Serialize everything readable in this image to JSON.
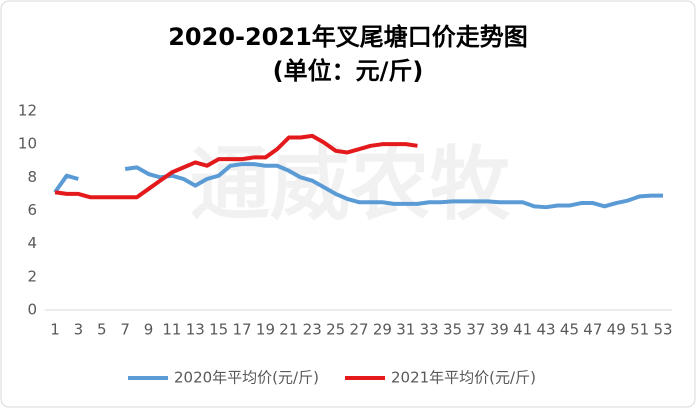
{
  "chart_data": {
    "type": "line",
    "title": "2020-2021年叉尾塘口价走势图",
    "subtitle": "(单位：元/斤)",
    "watermark": "通威农牧",
    "x": [
      1,
      2,
      3,
      4,
      5,
      6,
      7,
      8,
      9,
      10,
      11,
      12,
      13,
      14,
      15,
      16,
      17,
      18,
      19,
      20,
      21,
      22,
      23,
      24,
      25,
      26,
      27,
      28,
      29,
      30,
      31,
      32,
      33,
      34,
      35,
      36,
      37,
      38,
      39,
      40,
      41,
      42,
      43,
      44,
      45,
      46,
      47,
      48,
      49,
      50,
      51,
      52,
      53
    ],
    "xlim": [
      1,
      53
    ],
    "xticks": [
      1,
      3,
      5,
      7,
      9,
      11,
      13,
      15,
      17,
      19,
      21,
      23,
      25,
      27,
      29,
      31,
      33,
      35,
      37,
      39,
      41,
      43,
      45,
      47,
      49,
      51,
      53
    ],
    "ylim": [
      0,
      12
    ],
    "yticks": [
      0,
      2,
      4,
      6,
      8,
      10,
      12
    ],
    "grid": false,
    "legend": "bottom",
    "series": [
      {
        "name": "2020年平均价(元/斤)",
        "color": "#5b9bd5",
        "values": [
          7.1,
          8.1,
          7.9,
          null,
          null,
          null,
          8.5,
          8.6,
          8.2,
          8.0,
          8.1,
          7.9,
          7.5,
          7.9,
          8.1,
          8.7,
          8.8,
          8.8,
          8.7,
          8.7,
          8.4,
          8.0,
          7.8,
          7.4,
          7.0,
          6.7,
          6.5,
          6.5,
          6.5,
          6.4,
          6.4,
          6.4,
          6.5,
          6.5,
          6.55,
          6.55,
          6.55,
          6.55,
          6.5,
          6.5,
          6.5,
          6.25,
          6.2,
          6.3,
          6.3,
          6.45,
          6.45,
          6.25,
          6.45,
          6.6,
          6.85,
          6.9,
          6.9
        ]
      },
      {
        "name": "2021年平均价(元/斤)",
        "color": "#e3191c",
        "values": [
          7.1,
          7.0,
          7.0,
          6.8,
          6.8,
          6.8,
          6.8,
          6.8,
          7.3,
          7.8,
          8.3,
          8.6,
          8.9,
          8.7,
          9.1,
          9.1,
          9.1,
          9.2,
          9.2,
          9.7,
          10.4,
          10.4,
          10.5,
          10.1,
          9.6,
          9.5,
          9.7,
          9.9,
          10.0,
          10.0,
          10.0,
          9.9,
          null,
          null,
          null,
          null,
          null,
          null,
          null,
          null,
          null,
          null,
          null,
          null,
          null,
          null,
          null,
          null,
          null,
          null,
          null,
          null,
          null
        ]
      }
    ]
  }
}
